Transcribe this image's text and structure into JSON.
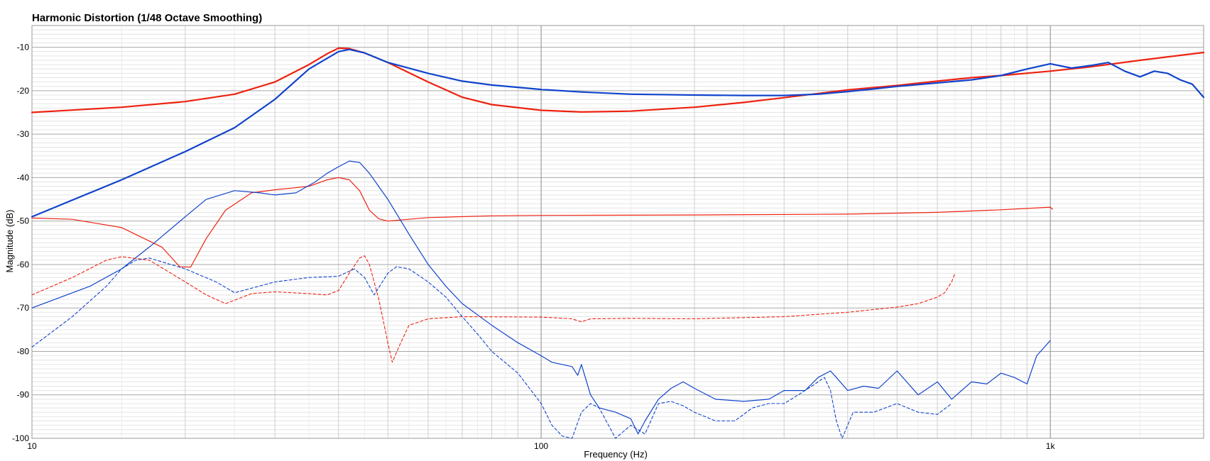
{
  "chart_data": {
    "type": "line",
    "title": "Harmonic Distortion (1/48 Octave Smoothing)",
    "xlabel": "Frequency (Hz)",
    "ylabel": "Magnitude (dB)",
    "xscale": "log",
    "xlim": [
      10,
      2000
    ],
    "ylim": [
      -100,
      -5
    ],
    "grid": true,
    "x_tick_labels": [
      {
        "value": 10,
        "label": "10"
      },
      {
        "value": 100,
        "label": "100"
      },
      {
        "value": 1000,
        "label": "1k"
      }
    ],
    "y_tick_labels": [
      {
        "value": -10,
        "label": "-10"
      },
      {
        "value": -20,
        "label": "-20"
      },
      {
        "value": -30,
        "label": "-30"
      },
      {
        "value": -40,
        "label": "-40"
      },
      {
        "value": -50,
        "label": "-50"
      },
      {
        "value": -60,
        "label": "-60"
      },
      {
        "value": -70,
        "label": "-70"
      },
      {
        "value": -80,
        "label": "-80"
      },
      {
        "value": -90,
        "label": "-90"
      },
      {
        "value": -100,
        "label": "-100"
      }
    ],
    "series": [
      {
        "color": "#ee2211",
        "width": 2.2,
        "dash": "",
        "points": [
          [
            10,
            -25
          ],
          [
            15,
            -23.8
          ],
          [
            20,
            -22.5
          ],
          [
            25,
            -20.8
          ],
          [
            30,
            -18
          ],
          [
            35,
            -14
          ],
          [
            38,
            -11.5
          ],
          [
            40,
            -10.2
          ],
          [
            42,
            -10.3
          ],
          [
            45,
            -11.3
          ],
          [
            50,
            -13.5
          ],
          [
            60,
            -18
          ],
          [
            70,
            -21.5
          ],
          [
            80,
            -23.2
          ],
          [
            100,
            -24.5
          ],
          [
            120,
            -24.9
          ],
          [
            150,
            -24.7
          ],
          [
            200,
            -23.8
          ],
          [
            250,
            -22.7
          ],
          [
            300,
            -21.6
          ],
          [
            400,
            -19.8
          ],
          [
            500,
            -18.8
          ],
          [
            600,
            -17.8
          ],
          [
            700,
            -17
          ],
          [
            800,
            -16.5
          ],
          [
            1000,
            -15.5
          ],
          [
            1200,
            -14.5
          ],
          [
            1500,
            -13
          ],
          [
            2000,
            -11.2
          ]
        ]
      },
      {
        "color": "#1144cc",
        "width": 2.2,
        "dash": "",
        "points": [
          [
            10,
            -49
          ],
          [
            15,
            -40.5
          ],
          [
            20,
            -34
          ],
          [
            25,
            -28.5
          ],
          [
            30,
            -22
          ],
          [
            35,
            -15
          ],
          [
            40,
            -11
          ],
          [
            42,
            -10.5
          ],
          [
            45,
            -11.3
          ],
          [
            50,
            -13.5
          ],
          [
            60,
            -16
          ],
          [
            70,
            -17.8
          ],
          [
            80,
            -18.7
          ],
          [
            100,
            -19.7
          ],
          [
            120,
            -20.3
          ],
          [
            150,
            -20.8
          ],
          [
            200,
            -21
          ],
          [
            250,
            -21.1
          ],
          [
            300,
            -21.1
          ],
          [
            350,
            -20.8
          ],
          [
            400,
            -20.2
          ],
          [
            450,
            -19.6
          ],
          [
            500,
            -19
          ],
          [
            600,
            -18.2
          ],
          [
            700,
            -17.5
          ],
          [
            800,
            -16.5
          ],
          [
            900,
            -15
          ],
          [
            1000,
            -13.8
          ],
          [
            1100,
            -14.8
          ],
          [
            1200,
            -14.2
          ],
          [
            1300,
            -13.5
          ],
          [
            1400,
            -15.5
          ],
          [
            1500,
            -16.8
          ],
          [
            1600,
            -15.5
          ],
          [
            1700,
            -16
          ],
          [
            1800,
            -17.5
          ],
          [
            1900,
            -18.5
          ],
          [
            2000,
            -21.5
          ]
        ]
      },
      {
        "color": "#ee2211",
        "width": 1.2,
        "dash": "",
        "points": [
          [
            10,
            -49.3
          ],
          [
            12,
            -49.6
          ],
          [
            15,
            -51.5
          ],
          [
            18,
            -56
          ],
          [
            19.5,
            -60.5
          ],
          [
            20.5,
            -60.6
          ],
          [
            22,
            -54
          ],
          [
            24,
            -47.5
          ],
          [
            27,
            -43.5
          ],
          [
            30,
            -42.8
          ],
          [
            35,
            -42
          ],
          [
            38,
            -40.5
          ],
          [
            40,
            -40
          ],
          [
            42,
            -40.5
          ],
          [
            44,
            -43
          ],
          [
            46,
            -47.5
          ],
          [
            48,
            -49.5
          ],
          [
            50,
            -50
          ],
          [
            60,
            -49.2
          ],
          [
            80,
            -48.8
          ],
          [
            100,
            -48.7
          ],
          [
            200,
            -48.6
          ],
          [
            400,
            -48.4
          ],
          [
            600,
            -48
          ],
          [
            800,
            -47.4
          ],
          [
            1000,
            -46.8
          ],
          [
            1010,
            -47.3
          ]
        ]
      },
      {
        "color": "#1144cc",
        "width": 1.2,
        "dash": "",
        "points": [
          [
            10,
            -70
          ],
          [
            13,
            -65
          ],
          [
            15,
            -61
          ],
          [
            17,
            -56
          ],
          [
            20,
            -49
          ],
          [
            22,
            -45
          ],
          [
            25,
            -43
          ],
          [
            28,
            -43.5
          ],
          [
            30,
            -44
          ],
          [
            33,
            -43.5
          ],
          [
            36,
            -41
          ],
          [
            38,
            -39
          ],
          [
            40,
            -37.5
          ],
          [
            42,
            -36.2
          ],
          [
            44,
            -36.5
          ],
          [
            46,
            -39
          ],
          [
            50,
            -45
          ],
          [
            55,
            -53
          ],
          [
            60,
            -60
          ],
          [
            65,
            -65
          ],
          [
            70,
            -69
          ],
          [
            80,
            -74
          ],
          [
            90,
            -78
          ],
          [
            100,
            -81
          ],
          [
            105,
            -82.5
          ],
          [
            115,
            -83.5
          ],
          [
            118,
            -85.5
          ],
          [
            120,
            -83
          ],
          [
            125,
            -90
          ],
          [
            130,
            -93
          ],
          [
            140,
            -94
          ],
          [
            150,
            -95.5
          ],
          [
            155,
            -99
          ],
          [
            160,
            -96
          ],
          [
            170,
            -91
          ],
          [
            180,
            -88.5
          ],
          [
            190,
            -87
          ],
          [
            200,
            -88.5
          ],
          [
            220,
            -91
          ],
          [
            250,
            -91.5
          ],
          [
            280,
            -91
          ],
          [
            300,
            -89
          ],
          [
            330,
            -89
          ],
          [
            350,
            -86
          ],
          [
            370,
            -84.5
          ],
          [
            380,
            -86
          ],
          [
            400,
            -89
          ],
          [
            430,
            -88
          ],
          [
            460,
            -88.5
          ],
          [
            500,
            -84.5
          ],
          [
            550,
            -90
          ],
          [
            600,
            -87
          ],
          [
            640,
            -91
          ],
          [
            700,
            -87
          ],
          [
            750,
            -87.5
          ],
          [
            800,
            -85
          ],
          [
            850,
            -86
          ],
          [
            900,
            -87.5
          ],
          [
            940,
            -81
          ],
          [
            1000,
            -77.5
          ]
        ]
      },
      {
        "color": "#ee2211",
        "width": 1.1,
        "dash": "4 3",
        "points": [
          [
            10,
            -67
          ],
          [
            12,
            -63
          ],
          [
            14,
            -59
          ],
          [
            15,
            -58.2
          ],
          [
            17,
            -59
          ],
          [
            20,
            -64
          ],
          [
            22,
            -67
          ],
          [
            24,
            -69
          ],
          [
            27,
            -66.7
          ],
          [
            30,
            -66.3
          ],
          [
            35,
            -66.7
          ],
          [
            38,
            -67
          ],
          [
            40,
            -66
          ],
          [
            42,
            -62
          ],
          [
            44,
            -58.5
          ],
          [
            45,
            -58
          ],
          [
            46,
            -60
          ],
          [
            48,
            -68
          ],
          [
            50,
            -78
          ],
          [
            51,
            -82.5
          ],
          [
            53,
            -78
          ],
          [
            55,
            -74
          ],
          [
            60,
            -72.5
          ],
          [
            70,
            -72
          ],
          [
            100,
            -72.1
          ],
          [
            115,
            -72.5
          ],
          [
            120,
            -73.2
          ],
          [
            125,
            -72.5
          ],
          [
            150,
            -72.4
          ],
          [
            200,
            -72.5
          ],
          [
            300,
            -72
          ],
          [
            400,
            -71
          ],
          [
            500,
            -69.8
          ],
          [
            550,
            -69
          ],
          [
            600,
            -67.5
          ],
          [
            620,
            -66.5
          ],
          [
            640,
            -64
          ],
          [
            650,
            -62
          ]
        ]
      },
      {
        "color": "#1144cc",
        "width": 1.1,
        "dash": "4 3",
        "points": [
          [
            10,
            -79
          ],
          [
            12,
            -72
          ],
          [
            14,
            -65
          ],
          [
            15,
            -61
          ],
          [
            16,
            -59
          ],
          [
            17,
            -58.5
          ],
          [
            20,
            -61
          ],
          [
            23,
            -64
          ],
          [
            25,
            -66.5
          ],
          [
            30,
            -64
          ],
          [
            35,
            -63
          ],
          [
            40,
            -62.7
          ],
          [
            43,
            -61
          ],
          [
            45,
            -63
          ],
          [
            47,
            -67
          ],
          [
            50,
            -62
          ],
          [
            52,
            -60.5
          ],
          [
            55,
            -61
          ],
          [
            60,
            -64
          ],
          [
            65,
            -67.5
          ],
          [
            70,
            -72
          ],
          [
            75,
            -76
          ],
          [
            80,
            -80
          ],
          [
            90,
            -85
          ],
          [
            100,
            -92
          ],
          [
            105,
            -97
          ],
          [
            110,
            -99.5
          ],
          [
            115,
            -100
          ],
          [
            120,
            -94
          ],
          [
            125,
            -92
          ],
          [
            130,
            -93
          ],
          [
            140,
            -100
          ],
          [
            150,
            -97
          ],
          [
            160,
            -99
          ],
          [
            170,
            -92
          ],
          [
            180,
            -91.5
          ],
          [
            190,
            -92.5
          ],
          [
            200,
            -94
          ],
          [
            220,
            -96
          ],
          [
            240,
            -96
          ],
          [
            260,
            -93
          ],
          [
            280,
            -92
          ],
          [
            300,
            -92
          ],
          [
            320,
            -90
          ],
          [
            340,
            -88
          ],
          [
            360,
            -86
          ],
          [
            370,
            -89
          ],
          [
            380,
            -96
          ],
          [
            390,
            -100
          ],
          [
            410,
            -94
          ],
          [
            450,
            -94
          ],
          [
            500,
            -92
          ],
          [
            550,
            -94
          ],
          [
            600,
            -94.5
          ],
          [
            640,
            -92
          ]
        ]
      }
    ]
  }
}
